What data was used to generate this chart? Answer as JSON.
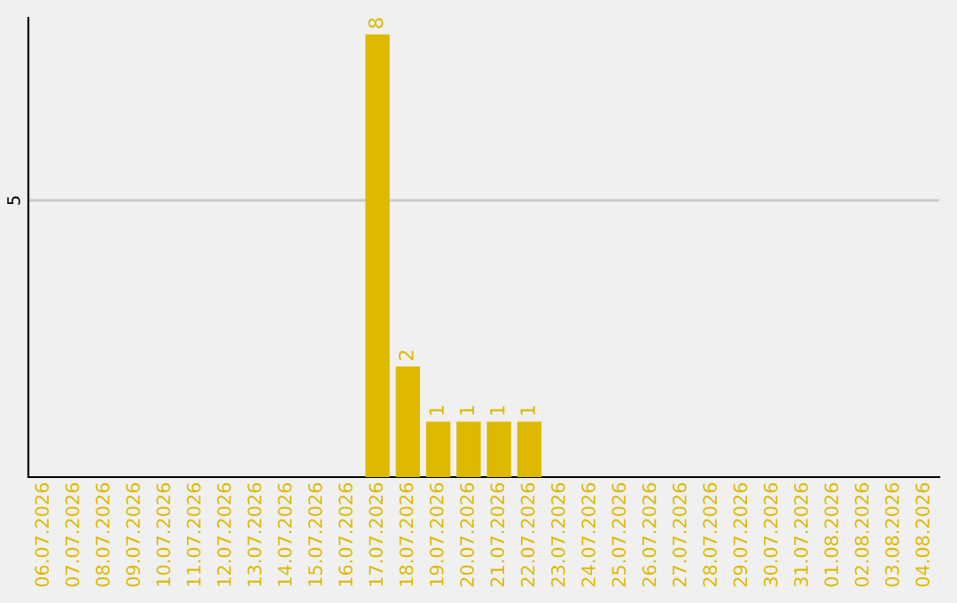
{
  "chart_data": {
    "type": "bar",
    "categories": [
      "06.07.2026",
      "07.07.2026",
      "08.07.2026",
      "09.07.2026",
      "10.07.2026",
      "11.07.2026",
      "12.07.2026",
      "13.07.2026",
      "14.07.2026",
      "15.07.2026",
      "16.07.2026",
      "17.07.2026",
      "18.07.2026",
      "19.07.2026",
      "20.07.2026",
      "21.07.2026",
      "22.07.2026",
      "23.07.2026",
      "24.07.2026",
      "25.07.2026",
      "26.07.2026",
      "27.07.2026",
      "28.07.2026",
      "29.07.2026",
      "30.07.2026",
      "31.07.2026",
      "01.08.2026",
      "02.08.2026",
      "03.08.2026",
      "04.08.2026"
    ],
    "values": [
      0,
      0,
      0,
      0,
      0,
      0,
      0,
      0,
      0,
      0,
      0,
      8,
      2,
      1,
      1,
      1,
      1,
      0,
      0,
      0,
      0,
      0,
      0,
      0,
      0,
      0,
      0,
      0,
      0,
      0
    ],
    "value_labels": [
      null,
      null,
      null,
      null,
      null,
      null,
      null,
      null,
      null,
      null,
      null,
      "8",
      "2",
      "1",
      "1",
      "1",
      "1",
      null,
      null,
      null,
      null,
      null,
      null,
      null,
      null,
      null,
      null,
      null,
      null,
      null
    ],
    "color": "#ddb900",
    "ylim": [
      0,
      8.3
    ],
    "yticks": [
      5
    ],
    "grid": "y",
    "legend": false
  }
}
